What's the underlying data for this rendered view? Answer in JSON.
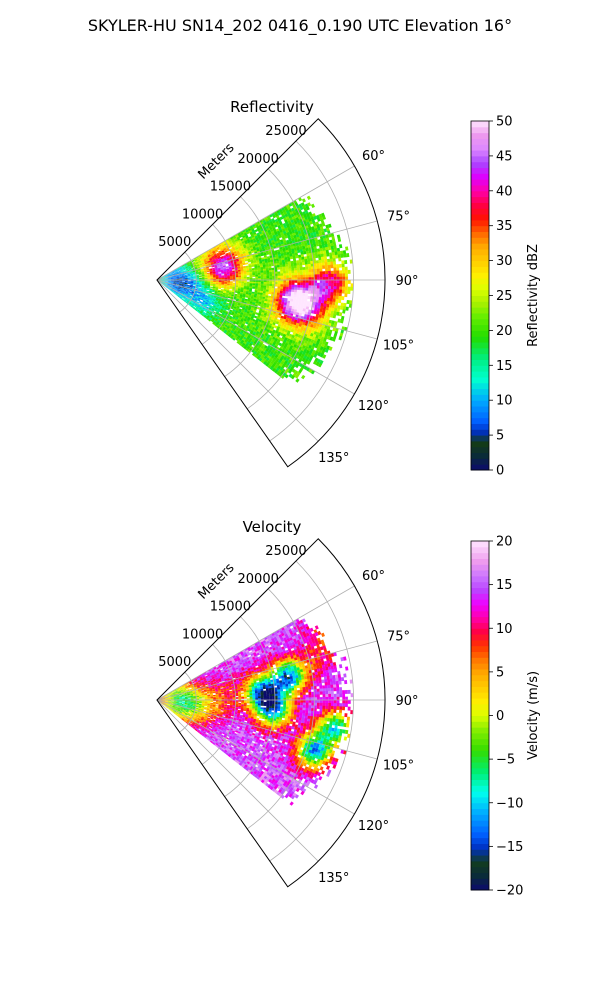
{
  "figure": {
    "title": "SKYLER-HU  SN14_202  0416_0.190 UTC Elevation 16°"
  },
  "chart_data": [
    {
      "type": "heatmap",
      "projection": "polar-sector",
      "title": "Reflectivity",
      "radial_axis_label": "Meters",
      "radial_ticks": [
        5000,
        10000,
        15000,
        20000,
        25000
      ],
      "radial_tick_labels": [
        "5000",
        "10000",
        "15000",
        "20000",
        "25000"
      ],
      "rmax": 29000,
      "azimuth_range": [
        45,
        145
      ],
      "azimuth_ticks": [
        60,
        75,
        90,
        105,
        120,
        135
      ],
      "azimuth_tick_labels": [
        "60°",
        "75°",
        "90°",
        "105°",
        "120°",
        "135°"
      ],
      "grid": true,
      "colorbar": {
        "label": "Reflectivity dBZ",
        "range": [
          0,
          50
        ],
        "ticks": [
          0,
          5,
          10,
          15,
          20,
          25,
          30,
          35,
          40,
          45,
          50
        ],
        "tick_labels": [
          "0",
          "5",
          "10",
          "15",
          "20",
          "25",
          "30",
          "35",
          "40",
          "45",
          "50"
        ],
        "colormap": "radar-reflectivity"
      },
      "data_extent": {
        "azimuth": [
          60,
          128
        ],
        "range": [
          0,
          25000
        ]
      },
      "base_value": 20,
      "cores": [
        {
          "azimuth": 91,
          "range": 22000,
          "value": 40
        },
        {
          "azimuth": 99,
          "range": 17500,
          "value": 42
        },
        {
          "azimuth": 97,
          "range": 19000,
          "value": 32
        },
        {
          "azimuth": 78,
          "range": 9000,
          "value": 38
        },
        {
          "azimuth": 82,
          "range": 8000,
          "value": 28
        },
        {
          "azimuth": 103,
          "range": 20000,
          "value": 30
        }
      ],
      "low_areas": [
        {
          "azimuth": 98,
          "range": 3500,
          "value": 10
        },
        {
          "azimuth": 110,
          "range": 6500,
          "value": 9
        },
        {
          "azimuth": 85,
          "range": 1800,
          "value": 14
        }
      ]
    },
    {
      "type": "heatmap",
      "projection": "polar-sector",
      "title": "Velocity",
      "radial_axis_label": "Meters",
      "radial_ticks": [
        5000,
        10000,
        15000,
        20000,
        25000
      ],
      "radial_tick_labels": [
        "5000",
        "10000",
        "15000",
        "20000",
        "25000"
      ],
      "rmax": 29000,
      "azimuth_range": [
        45,
        145
      ],
      "azimuth_ticks": [
        60,
        75,
        90,
        105,
        120,
        135
      ],
      "azimuth_tick_labels": [
        "60°",
        "75°",
        "90°",
        "105°",
        "120°",
        "135°"
      ],
      "grid": true,
      "colorbar": {
        "label": "Velocity (m/s)",
        "range": [
          -20,
          20
        ],
        "ticks": [
          -20,
          -15,
          -10,
          -5,
          0,
          5,
          10,
          15,
          20
        ],
        "tick_labels": [
          "−20",
          "−15",
          "−10",
          "−5",
          "0",
          "5",
          "10",
          "15",
          "20"
        ],
        "colormap": "radar-velocity"
      },
      "data_extent": {
        "azimuth": [
          60,
          128
        ],
        "range": [
          0,
          25000
        ]
      },
      "base_value": 15,
      "cores": [
        {
          "azimuth": 90,
          "range": 2500,
          "value": 0
        },
        {
          "azimuth": 100,
          "range": 5000,
          "value": 3
        },
        {
          "azimuth": 88,
          "range": 8500,
          "value": 9
        },
        {
          "azimuth": 75,
          "range": 21000,
          "value": 10
        },
        {
          "azimuth": 68,
          "range": 23500,
          "value": 9
        }
      ],
      "low_areas": [
        {
          "azimuth": 86,
          "range": 13500,
          "value": -12
        },
        {
          "azimuth": 95,
          "range": 15000,
          "value": -10
        },
        {
          "azimuth": 80,
          "range": 17000,
          "value": -13
        },
        {
          "azimuth": 108,
          "range": 21000,
          "value": -11
        },
        {
          "azimuth": 99,
          "range": 23000,
          "value": -9
        }
      ]
    }
  ]
}
